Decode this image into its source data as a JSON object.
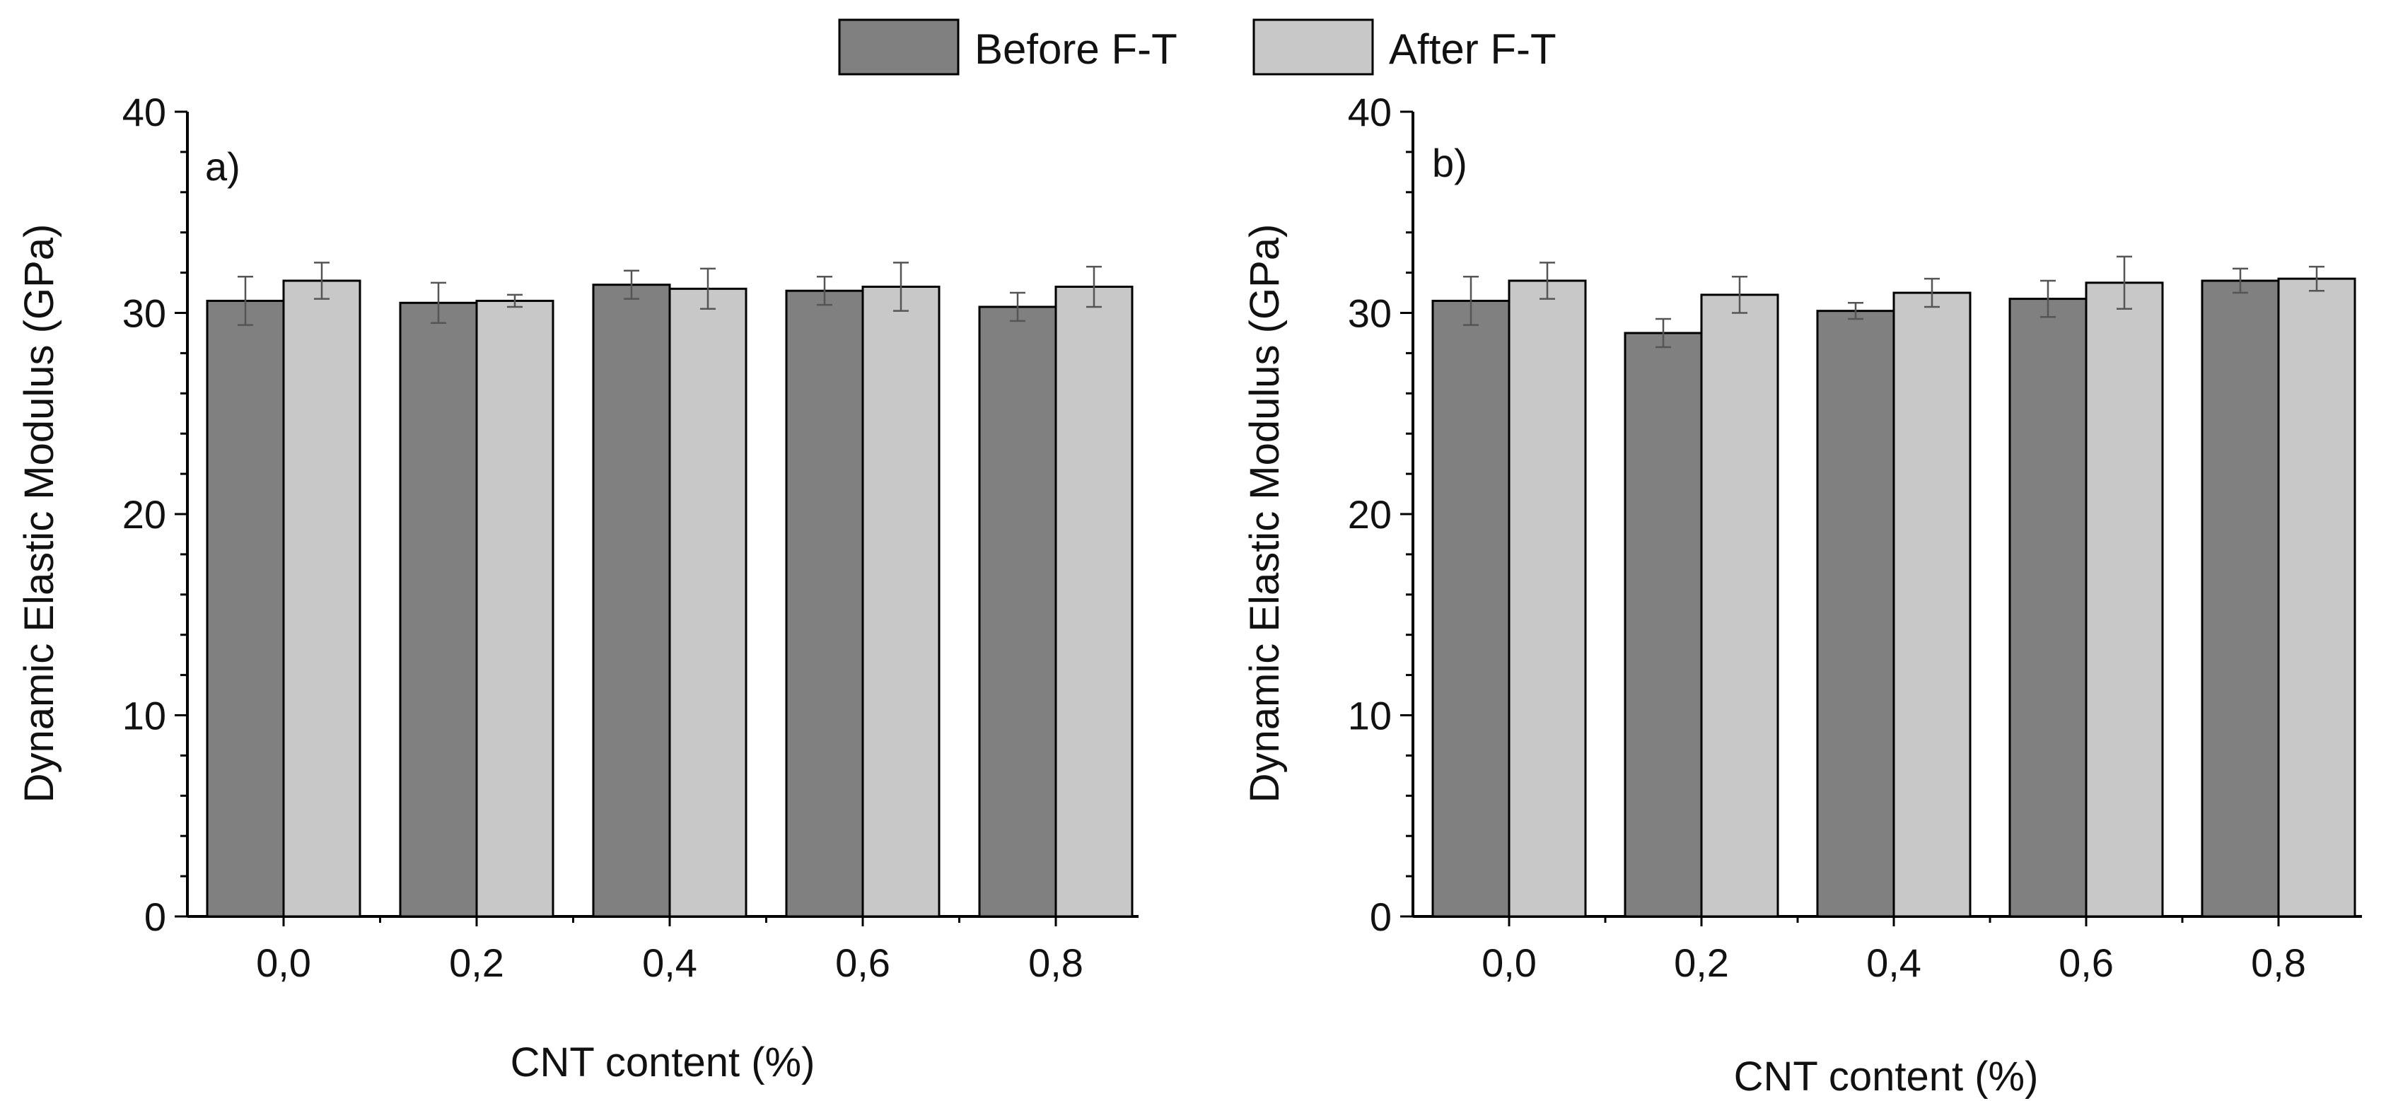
{
  "legend": {
    "items": [
      {
        "label": "Before F-T",
        "color": "#808080"
      },
      {
        "label": "After F-T",
        "color": "#c8c8c8"
      }
    ]
  },
  "colors": {
    "before": "#808080",
    "after": "#c8c8c8",
    "stroke": "#000000",
    "error_bar": "#555555"
  },
  "chart_data": [
    {
      "type": "bar",
      "panel_label": "a)",
      "xlabel": "CNT content (%)",
      "ylabel": "Dynamic Elastic Modulus (GPa)",
      "categories": [
        "0,0",
        "0,2",
        "0,4",
        "0,6",
        "0,8"
      ],
      "ylim": [
        0,
        40
      ],
      "yticks": [
        "0",
        "10",
        "20",
        "30",
        "40"
      ],
      "series": [
        {
          "name": "Before F-T",
          "values": [
            30.6,
            30.5,
            31.4,
            31.1,
            30.3
          ],
          "errors": [
            1.2,
            1.0,
            0.7,
            0.7,
            0.7
          ]
        },
        {
          "name": "After F-T",
          "values": [
            31.6,
            30.6,
            31.2,
            31.3,
            31.3
          ],
          "errors": [
            0.9,
            0.3,
            1.0,
            1.2,
            1.0
          ]
        }
      ]
    },
    {
      "type": "bar",
      "panel_label": "b)",
      "xlabel": "CNT content (%)",
      "ylabel": "Dynamic Elastic Modulus (GPa)",
      "categories": [
        "0,0",
        "0,2",
        "0,4",
        "0,6",
        "0,8"
      ],
      "ylim": [
        0,
        40
      ],
      "yticks": [
        "0",
        "10",
        "20",
        "30",
        "40"
      ],
      "series": [
        {
          "name": "Before F-T",
          "values": [
            30.6,
            29.0,
            30.1,
            30.7,
            31.6
          ],
          "errors": [
            1.2,
            0.7,
            0.4,
            0.9,
            0.6
          ]
        },
        {
          "name": "After F-T",
          "values": [
            31.6,
            30.9,
            31.0,
            31.5,
            31.7
          ],
          "errors": [
            0.9,
            0.9,
            0.7,
            1.3,
            0.6
          ]
        }
      ]
    }
  ]
}
